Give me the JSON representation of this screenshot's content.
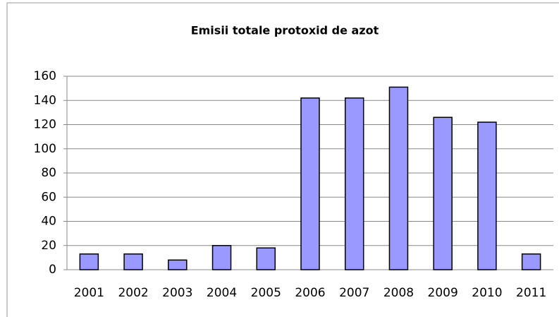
{
  "chart_data": {
    "type": "bar",
    "title": "Emisii totale protoxid de azot",
    "categories": [
      "2001",
      "2002",
      "2003",
      "2004",
      "2005",
      "2006",
      "2007",
      "2008",
      "2009",
      "2010",
      "2011"
    ],
    "values": [
      13,
      13,
      8,
      20,
      18,
      142,
      142,
      151,
      126,
      122,
      13
    ],
    "color": "#9999ff",
    "ylim": [
      0,
      160
    ],
    "yticks": [
      0,
      20,
      40,
      60,
      80,
      100,
      120,
      140,
      160
    ],
    "grid": true
  }
}
